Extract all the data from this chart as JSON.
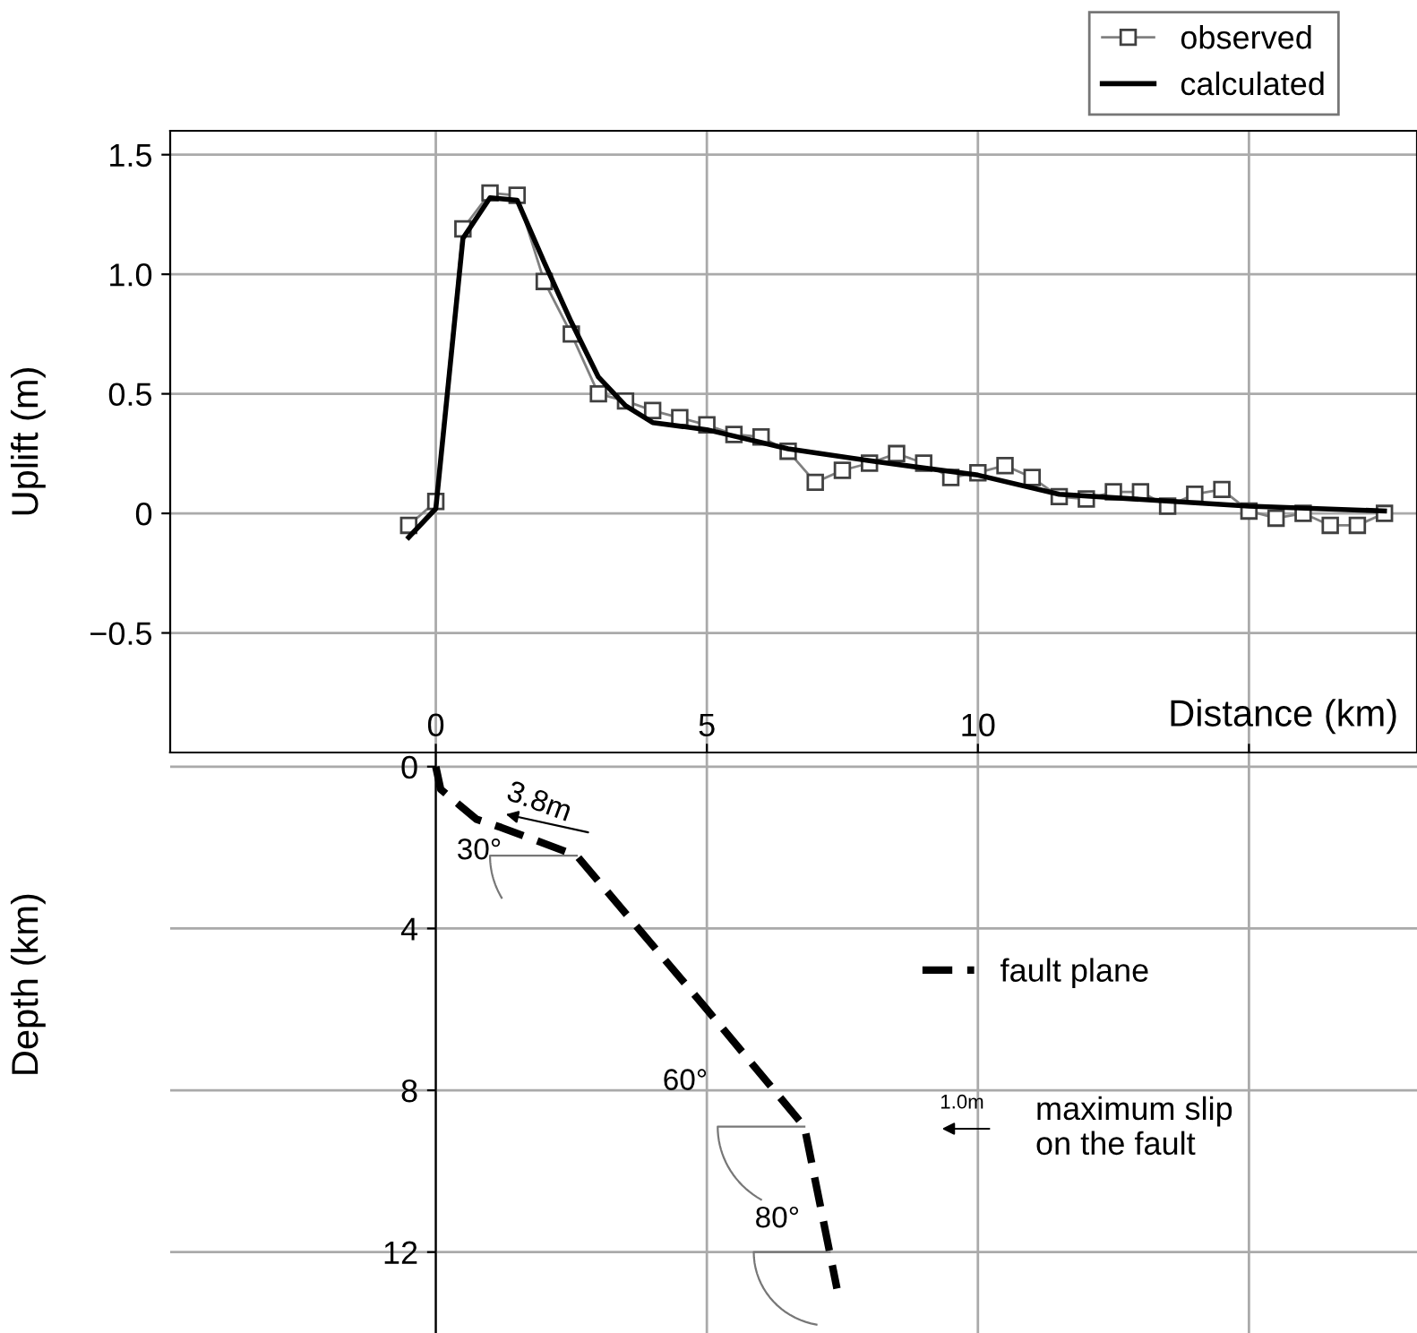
{
  "chart_data": [
    {
      "type": "line",
      "ylabel": "Uplift (m)",
      "xlabel": "Distance (km)",
      "xlim": [
        -4.9,
        18.1
      ],
      "ylim": [
        -1.0,
        1.6
      ],
      "xticks": [
        0,
        5,
        10,
        {
          "value": 15,
          "label": null
        }
      ],
      "yticks": [
        {
          "value": -0.5,
          "label": "−0.5"
        },
        0,
        0.5,
        {
          "value": 1.0,
          "label": "1.0"
        },
        1.5
      ],
      "grid": true,
      "legend": "top right",
      "series": [
        {
          "name": "observed",
          "color": "#808080",
          "marker": "square",
          "x": [
            -0.5,
            0,
            0.5,
            1.0,
            1.5,
            2.0,
            2.5,
            3.0,
            3.5,
            4.0,
            4.5,
            5.0,
            5.5,
            6.0,
            6.5,
            7.0,
            7.5,
            8.0,
            8.5,
            9.0,
            9.5,
            10.0,
            10.5,
            11.0,
            11.5,
            12.0,
            12.5,
            13.0,
            13.5,
            14.0,
            14.5,
            15.0,
            15.5,
            16.0,
            16.5,
            17.0,
            17.5
          ],
          "values": [
            -0.05,
            0.05,
            1.19,
            1.34,
            1.33,
            0.97,
            0.75,
            0.5,
            0.47,
            0.43,
            0.4,
            0.37,
            0.33,
            0.32,
            0.26,
            0.13,
            0.18,
            0.21,
            0.25,
            0.21,
            0.15,
            0.17,
            0.2,
            0.15,
            0.07,
            0.06,
            0.09,
            0.09,
            0.03,
            0.08,
            0.1,
            0.01,
            -0.02,
            0.0,
            -0.05,
            -0.05,
            0.0
          ]
        },
        {
          "name": "calculated",
          "color": "#000000",
          "marker": "none",
          "x": [
            -0.5,
            0,
            0.5,
            1.0,
            1.5,
            2.0,
            2.5,
            3.0,
            3.5,
            4.0,
            5.0,
            6.5,
            8.0,
            10.0,
            11.5,
            15.0,
            17.5
          ],
          "values": [
            -0.1,
            0.02,
            1.15,
            1.32,
            1.31,
            1.05,
            0.8,
            0.57,
            0.45,
            0.38,
            0.35,
            0.27,
            0.22,
            0.16,
            0.08,
            0.03,
            0.01
          ]
        }
      ]
    },
    {
      "type": "line",
      "ylabel": "Depth (km)",
      "xlim": [
        -4.9,
        18.1
      ],
      "ylim": [
        14,
        -0.35
      ],
      "xticks": [
        0,
        5,
        10,
        {
          "value": 15,
          "label": null
        }
      ],
      "yticks": [
        0,
        4,
        8,
        12
      ],
      "tick_labels": "y",
      "grid": true,
      "legend": "right",
      "series": [
        {
          "name": "fault plane",
          "color": "#000000",
          "line_style": "dashed",
          "x": [
            0,
            0.09,
            0.75,
            1.2,
            2.6,
            5.0,
            6.8,
            7.4
          ],
          "values": [
            0,
            0.56,
            1.3,
            1.5,
            2.2,
            6.0,
            8.9,
            12.9
          ]
        }
      ],
      "annotations": [
        "3.8m",
        "30°",
        "60°",
        "80°",
        "1.0m",
        "maximum slip\non the fault"
      ]
    }
  ]
}
